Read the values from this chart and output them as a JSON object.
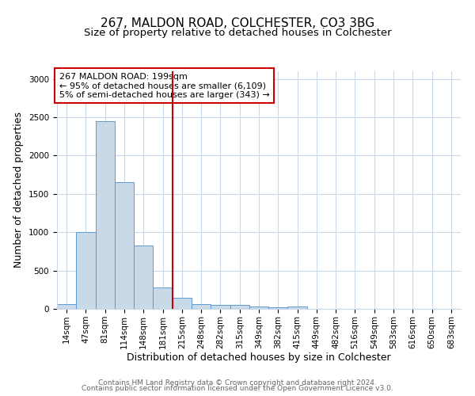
{
  "title1": "267, MALDON ROAD, COLCHESTER, CO3 3BG",
  "title2": "Size of property relative to detached houses in Colchester",
  "xlabel": "Distribution of detached houses by size in Colchester",
  "ylabel": "Number of detached properties",
  "categories": [
    "14sqm",
    "47sqm",
    "81sqm",
    "114sqm",
    "148sqm",
    "181sqm",
    "215sqm",
    "248sqm",
    "282sqm",
    "315sqm",
    "349sqm",
    "382sqm",
    "415sqm",
    "449sqm",
    "482sqm",
    "516sqm",
    "549sqm",
    "583sqm",
    "616sqm",
    "650sqm",
    "683sqm"
  ],
  "values": [
    65,
    1000,
    2450,
    1650,
    830,
    275,
    145,
    65,
    55,
    50,
    35,
    20,
    35,
    5,
    0,
    0,
    0,
    0,
    0,
    0,
    0
  ],
  "bar_color": "#c9d9e8",
  "bar_edge_color": "#5b9bd5",
  "vline_x": 5.5,
  "vline_color": "#cc0000",
  "annotation_text": "267 MALDON ROAD: 199sqm\n← 95% of detached houses are smaller (6,109)\n5% of semi-detached houses are larger (343) →",
  "annotation_box_color": "#cc0000",
  "ylim": [
    0,
    3100
  ],
  "yticks": [
    0,
    500,
    1000,
    1500,
    2000,
    2500,
    3000
  ],
  "footer1": "Contains HM Land Registry data © Crown copyright and database right 2024.",
  "footer2": "Contains public sector information licensed under the Open Government Licence v3.0.",
  "bg_color": "#ffffff",
  "grid_color": "#c8d8e8",
  "title1_fontsize": 11,
  "title2_fontsize": 9.5,
  "axis_label_fontsize": 9,
  "tick_fontsize": 7.5,
  "footer_fontsize": 6.5
}
